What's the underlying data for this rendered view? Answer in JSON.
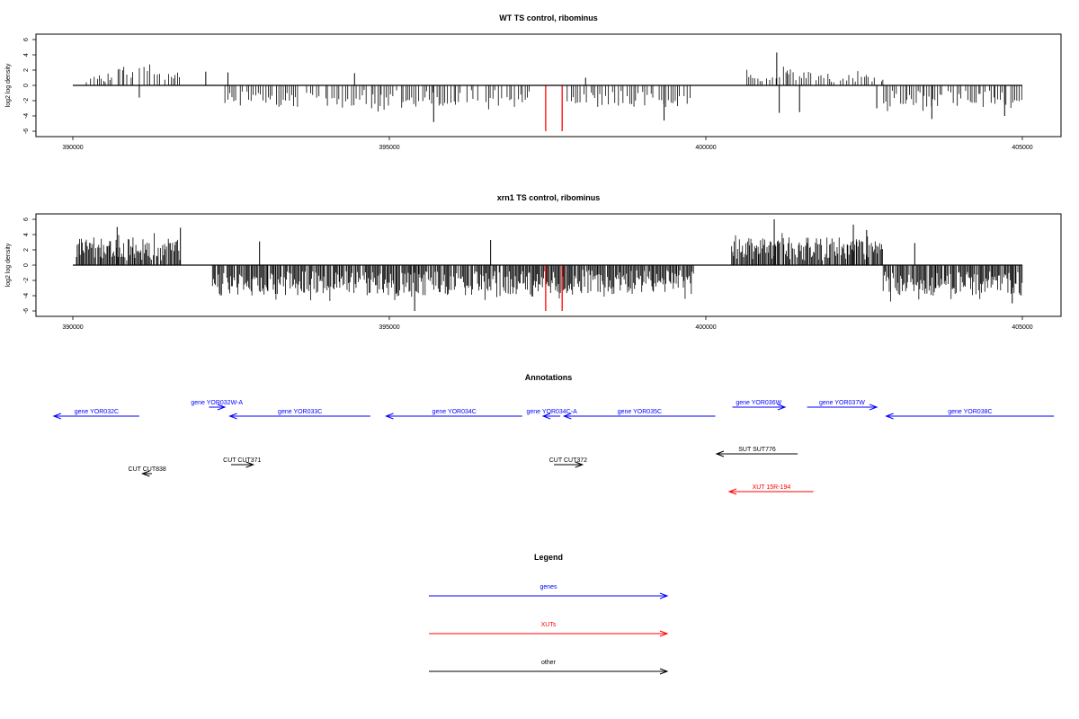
{
  "chart_data": [
    {
      "type": "bar",
      "title": "WT TS control, ribominus",
      "ylabel": "log2 log density",
      "xlim": [
        390000,
        405000
      ],
      "ylim": [
        -6,
        6
      ],
      "xticks": [
        390000,
        395000,
        400000,
        405000
      ],
      "xtick_labels": [
        "390000",
        "395000",
        "400000",
        "405000"
      ],
      "yticks": [
        6,
        4,
        2,
        0,
        -2,
        -4,
        -6
      ],
      "ytick_labels": [
        "6",
        "4",
        "2",
        "0",
        "-2",
        "-4",
        "-6"
      ],
      "grid": false,
      "colors": {
        "bars": "#000000",
        "highlight": "#ff0000"
      },
      "segments": [
        {
          "from": 390200,
          "to": 390700,
          "sign": 1,
          "min": 0.4,
          "max": 1.6
        },
        {
          "from": 390700,
          "to": 391300,
          "sign": 1,
          "min": 0.8,
          "max": 3.0
        },
        {
          "from": 391300,
          "to": 391700,
          "sign": 1,
          "min": 0.5,
          "max": 2.0
        },
        {
          "from": 392400,
          "to": 393000,
          "sign": -1,
          "min": 0.8,
          "max": 2.8
        },
        {
          "from": 393000,
          "to": 395700,
          "sign": -1,
          "min": 0.6,
          "max": 3.5
        },
        {
          "from": 395700,
          "to": 397200,
          "sign": -1,
          "min": 0.6,
          "max": 3.2
        },
        {
          "from": 397800,
          "to": 399800,
          "sign": -1,
          "min": 0.6,
          "max": 3.4
        },
        {
          "from": 400600,
          "to": 401300,
          "sign": 1,
          "min": 0.5,
          "max": 3.0
        },
        {
          "from": 401300,
          "to": 402800,
          "sign": 1,
          "min": 0.4,
          "max": 2.2
        },
        {
          "from": 402800,
          "to": 405000,
          "sign": -1,
          "min": 0.6,
          "max": 3.4
        }
      ],
      "marked_bars": [
        {
          "x": 391050,
          "value": -1.6
        },
        {
          "x": 392100,
          "value": 1.8
        },
        {
          "x": 392450,
          "value": 1.7
        },
        {
          "x": 394450,
          "value": 1.6
        },
        {
          "x": 395700,
          "value": -4.8
        },
        {
          "x": 398100,
          "value": 1.0
        },
        {
          "x": 399340,
          "value": -4.6
        },
        {
          "x": 401120,
          "value": 4.3
        },
        {
          "x": 401160,
          "value": -3.6
        },
        {
          "x": 401480,
          "value": -3.5
        },
        {
          "x": 402700,
          "value": -3.0
        },
        {
          "x": 403570,
          "value": -4.4
        },
        {
          "x": 404720,
          "value": -4.0
        }
      ],
      "red_bars": [
        {
          "x": 397470,
          "value": -6.0
        },
        {
          "x": 397730,
          "value": -6.0
        }
      ]
    },
    {
      "type": "bar",
      "title": "xrn1 TS control, ribominus",
      "ylabel": "log2 log density",
      "xlim": [
        390000,
        405000
      ],
      "ylim": [
        -6,
        6
      ],
      "xticks": [
        390000,
        395000,
        400000,
        405000
      ],
      "xtick_labels": [
        "390000",
        "395000",
        "400000",
        "405000"
      ],
      "yticks": [
        6,
        4,
        2,
        0,
        -2,
        -4,
        -6
      ],
      "ytick_labels": [
        "6",
        "4",
        "2",
        "0",
        "-2",
        "-4",
        "-6"
      ],
      "grid": false,
      "colors": {
        "bars": "#000000",
        "highlight": "#ff0000"
      },
      "segments": [
        {
          "from": 390050,
          "to": 391700,
          "sign": 1,
          "min": 0.6,
          "max": 4.2
        },
        {
          "from": 392200,
          "to": 395000,
          "sign": -1,
          "min": 0.8,
          "max": 4.8
        },
        {
          "from": 395000,
          "to": 397300,
          "sign": -1,
          "min": 0.8,
          "max": 5.2
        },
        {
          "from": 397300,
          "to": 399800,
          "sign": -1,
          "min": 0.6,
          "max": 4.6
        },
        {
          "from": 400400,
          "to": 402800,
          "sign": 1,
          "min": 0.6,
          "max": 4.4
        },
        {
          "from": 402800,
          "to": 405000,
          "sign": -1,
          "min": 0.8,
          "max": 4.8
        }
      ],
      "marked_bars": [
        {
          "x": 390700,
          "value": 5.0
        },
        {
          "x": 391700,
          "value": 4.9
        },
        {
          "x": 392950,
          "value": 3.1
        },
        {
          "x": 395400,
          "value": -6.0
        },
        {
          "x": 396600,
          "value": 3.3
        },
        {
          "x": 401080,
          "value": 6.0
        },
        {
          "x": 402330,
          "value": 5.3
        },
        {
          "x": 402540,
          "value": 4.6
        },
        {
          "x": 403300,
          "value": 2.9
        },
        {
          "x": 404840,
          "value": -5.0
        }
      ],
      "red_bars": [
        {
          "x": 397470,
          "value": -6.0
        },
        {
          "x": 397730,
          "value": -6.0
        }
      ]
    }
  ],
  "annotations": {
    "title": "Annotations",
    "colors": {
      "gene": "#0000ff",
      "xut": "#ff0000",
      "other": "#000000"
    },
    "features": [
      {
        "kind": "gene",
        "label": "gene YOR032C",
        "start": 391050,
        "end": 389700,
        "row": 1
      },
      {
        "kind": "gene",
        "label": "gene YOR032W-A",
        "start": 392150,
        "end": 392400,
        "row": 0
      },
      {
        "kind": "gene",
        "label": "gene YOR033C",
        "start": 394700,
        "end": 392480,
        "row": 1
      },
      {
        "kind": "gene",
        "label": "gene YOR034C",
        "start": 397100,
        "end": 394950,
        "row": 1
      },
      {
        "kind": "gene",
        "label": "gene YOR034C-A",
        "start": 397700,
        "end": 397430,
        "row": 1
      },
      {
        "kind": "gene",
        "label": "gene YOR035C",
        "start": 400150,
        "end": 397760,
        "row": 1
      },
      {
        "kind": "gene",
        "label": "gene YOR036W",
        "start": 400420,
        "end": 401250,
        "row": 0
      },
      {
        "kind": "gene",
        "label": "gene YOR037W",
        "start": 401600,
        "end": 402700,
        "row": 0
      },
      {
        "kind": "gene",
        "label": "gene YOR038C",
        "start": 405500,
        "end": 402850,
        "row": 1
      },
      {
        "kind": "other",
        "label": "SUT SUT776",
        "start": 401450,
        "end": 400170,
        "row": 2
      },
      {
        "kind": "other",
        "label": "CUT CUT371",
        "start": 392500,
        "end": 392850,
        "row": 3
      },
      {
        "kind": "other",
        "label": "CUT CUT372",
        "start": 397600,
        "end": 398050,
        "row": 3
      },
      {
        "kind": "other",
        "label": "CUT CUT838",
        "start": 391250,
        "end": 391100,
        "row": 4
      },
      {
        "kind": "xut",
        "label": "XUT 15R-194",
        "start": 401700,
        "end": 400370,
        "row": 5
      }
    ]
  },
  "legend": {
    "title": "Legend",
    "items": [
      {
        "label": "genes",
        "color": "#0000ff"
      },
      {
        "label": "XUTs",
        "color": "#ff0000"
      },
      {
        "label": "other",
        "color": "#000000"
      }
    ]
  }
}
